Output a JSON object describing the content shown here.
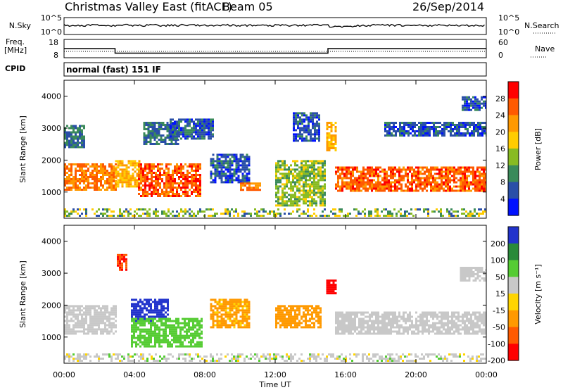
{
  "header": {
    "title": "Christmas Valley East (fitACF)",
    "beam": "Beam 05",
    "date": "26/Sep/2014"
  },
  "top_panels": {
    "noise": {
      "left_label": "N.Sky",
      "right_label": "N.Search",
      "left_ticks": [
        "10^5",
        "10^0"
      ],
      "right_ticks": [
        "10^5",
        "10^0"
      ]
    },
    "freq": {
      "left_label_1": "Freq.",
      "left_label_2": "[MHz]",
      "left_ticks": [
        "18",
        "8"
      ],
      "right_label": "Nave",
      "right_ticks": [
        "60",
        "0"
      ],
      "freq_segments": [
        {
          "start_hour": 0,
          "end_hour": 2.9,
          "freq_mhz": 13
        },
        {
          "start_hour": 2.9,
          "end_hour": 15.0,
          "freq_mhz": 10.5
        },
        {
          "start_hour": 15.0,
          "end_hour": 24,
          "freq_mhz": 13
        }
      ]
    },
    "cpid": {
      "label": "CPID",
      "program": "normal (fast) 151 IF"
    }
  },
  "panels": [
    {
      "id": "power",
      "ylabel": "Slant Range [km]",
      "yticks": [
        "1000",
        "2000",
        "3000",
        "4000"
      ],
      "colorbar_label": "Power [dB]",
      "colorbar_ticks": [
        "28",
        "24",
        "20",
        "16",
        "12",
        "8",
        "4"
      ],
      "colorbar_colors": [
        "#ff0000",
        "#ff5a00",
        "#ff9900",
        "#ffcc00",
        "#88bb22",
        "#3a8a5a",
        "#2a4fa8",
        "#0011ff"
      ]
    },
    {
      "id": "velocity",
      "ylabel": "Slant Range [km]",
      "yticks": [
        "1000",
        "2000",
        "3000",
        "4000"
      ],
      "colorbar_label": "Velocity [m s⁻¹]",
      "colorbar_ticks": [
        "200",
        "100",
        "50",
        "15",
        "-15",
        "-50",
        "-100",
        "-200"
      ],
      "colorbar_colors": [
        "#2233cc",
        "#2a8a3a",
        "#55cc33",
        "#c8c8c8",
        "#ffd500",
        "#ff9900",
        "#ff5a00",
        "#ff0000"
      ]
    }
  ],
  "xaxis": {
    "label": "Time UT",
    "ticks": [
      "00:00",
      "04:00",
      "08:00",
      "12:00",
      "16:00",
      "20:00",
      "00:00"
    ]
  },
  "chart_data": {
    "type": "heatmap",
    "title": "Christmas Valley East (fitACF)",
    "x_range_hours": [
      0,
      24
    ],
    "y_range_km": [
      180,
      4500
    ],
    "power_scale_db": [
      0,
      30
    ],
    "velocity_scale_ms": [
      -250,
      250
    ],
    "power_regions": [
      {
        "t0": 0.0,
        "t1": 2.9,
        "r0": 1100,
        "r1": 1900,
        "power_db": 24
      },
      {
        "t0": 0.0,
        "t1": 1.2,
        "r0": 2400,
        "r1": 3100,
        "power_db": 8
      },
      {
        "t0": 2.9,
        "t1": 4.3,
        "r0": 1200,
        "r1": 2000,
        "power_db": 20
      },
      {
        "t0": 4.2,
        "t1": 7.8,
        "r0": 850,
        "r1": 1900,
        "power_db": 26
      },
      {
        "t0": 4.5,
        "t1": 6.5,
        "r0": 2500,
        "r1": 3200,
        "power_db": 8
      },
      {
        "t0": 6.0,
        "t1": 8.5,
        "r0": 2700,
        "r1": 3300,
        "power_db": 6
      },
      {
        "t0": 8.3,
        "t1": 10.5,
        "r0": 1300,
        "r1": 2200,
        "power_db": 6
      },
      {
        "t0": 10.0,
        "t1": 11.2,
        "r0": 1050,
        "r1": 1300,
        "power_db": 24
      },
      {
        "t0": 12.0,
        "t1": 14.8,
        "r0": 600,
        "r1": 2000,
        "power_db": 14
      },
      {
        "t0": 13.0,
        "t1": 14.5,
        "r0": 2600,
        "r1": 3500,
        "power_db": 6
      },
      {
        "t0": 14.9,
        "t1": 15.4,
        "r0": 2300,
        "r1": 3200,
        "power_db": 20
      },
      {
        "t0": 15.4,
        "t1": 24.0,
        "r0": 1050,
        "r1": 1800,
        "power_db": 26
      },
      {
        "t0": 18.2,
        "t1": 24.0,
        "r0": 2800,
        "r1": 3200,
        "power_db": 6
      },
      {
        "t0": 22.6,
        "t1": 24.0,
        "r0": 3600,
        "r1": 4000,
        "power_db": 6
      }
    ],
    "velocity_regions": [
      {
        "t0": 0.0,
        "t1": 2.9,
        "r0": 1100,
        "r1": 2000,
        "velocity_ms": 0
      },
      {
        "t0": 3.8,
        "t1": 5.9,
        "r0": 1500,
        "r1": 2200,
        "velocity_ms": 200
      },
      {
        "t0": 3.8,
        "t1": 7.8,
        "r0": 700,
        "r1": 1600,
        "velocity_ms": 50
      },
      {
        "t0": 3.0,
        "t1": 3.6,
        "r0": 3100,
        "r1": 3600,
        "velocity_ms": -200
      },
      {
        "t0": 8.3,
        "t1": 10.5,
        "r0": 1300,
        "r1": 2200,
        "velocity_ms": -60
      },
      {
        "t0": 12.0,
        "t1": 14.6,
        "r0": 1300,
        "r1": 2000,
        "velocity_ms": -80
      },
      {
        "t0": 14.9,
        "t1": 15.5,
        "r0": 2400,
        "r1": 2800,
        "velocity_ms": -250
      },
      {
        "t0": 15.4,
        "t1": 24.0,
        "r0": 1100,
        "r1": 1800,
        "velocity_ms": 0
      },
      {
        "t0": 22.5,
        "t1": 24.0,
        "r0": 2800,
        "r1": 3200,
        "velocity_ms": 0
      }
    ]
  }
}
